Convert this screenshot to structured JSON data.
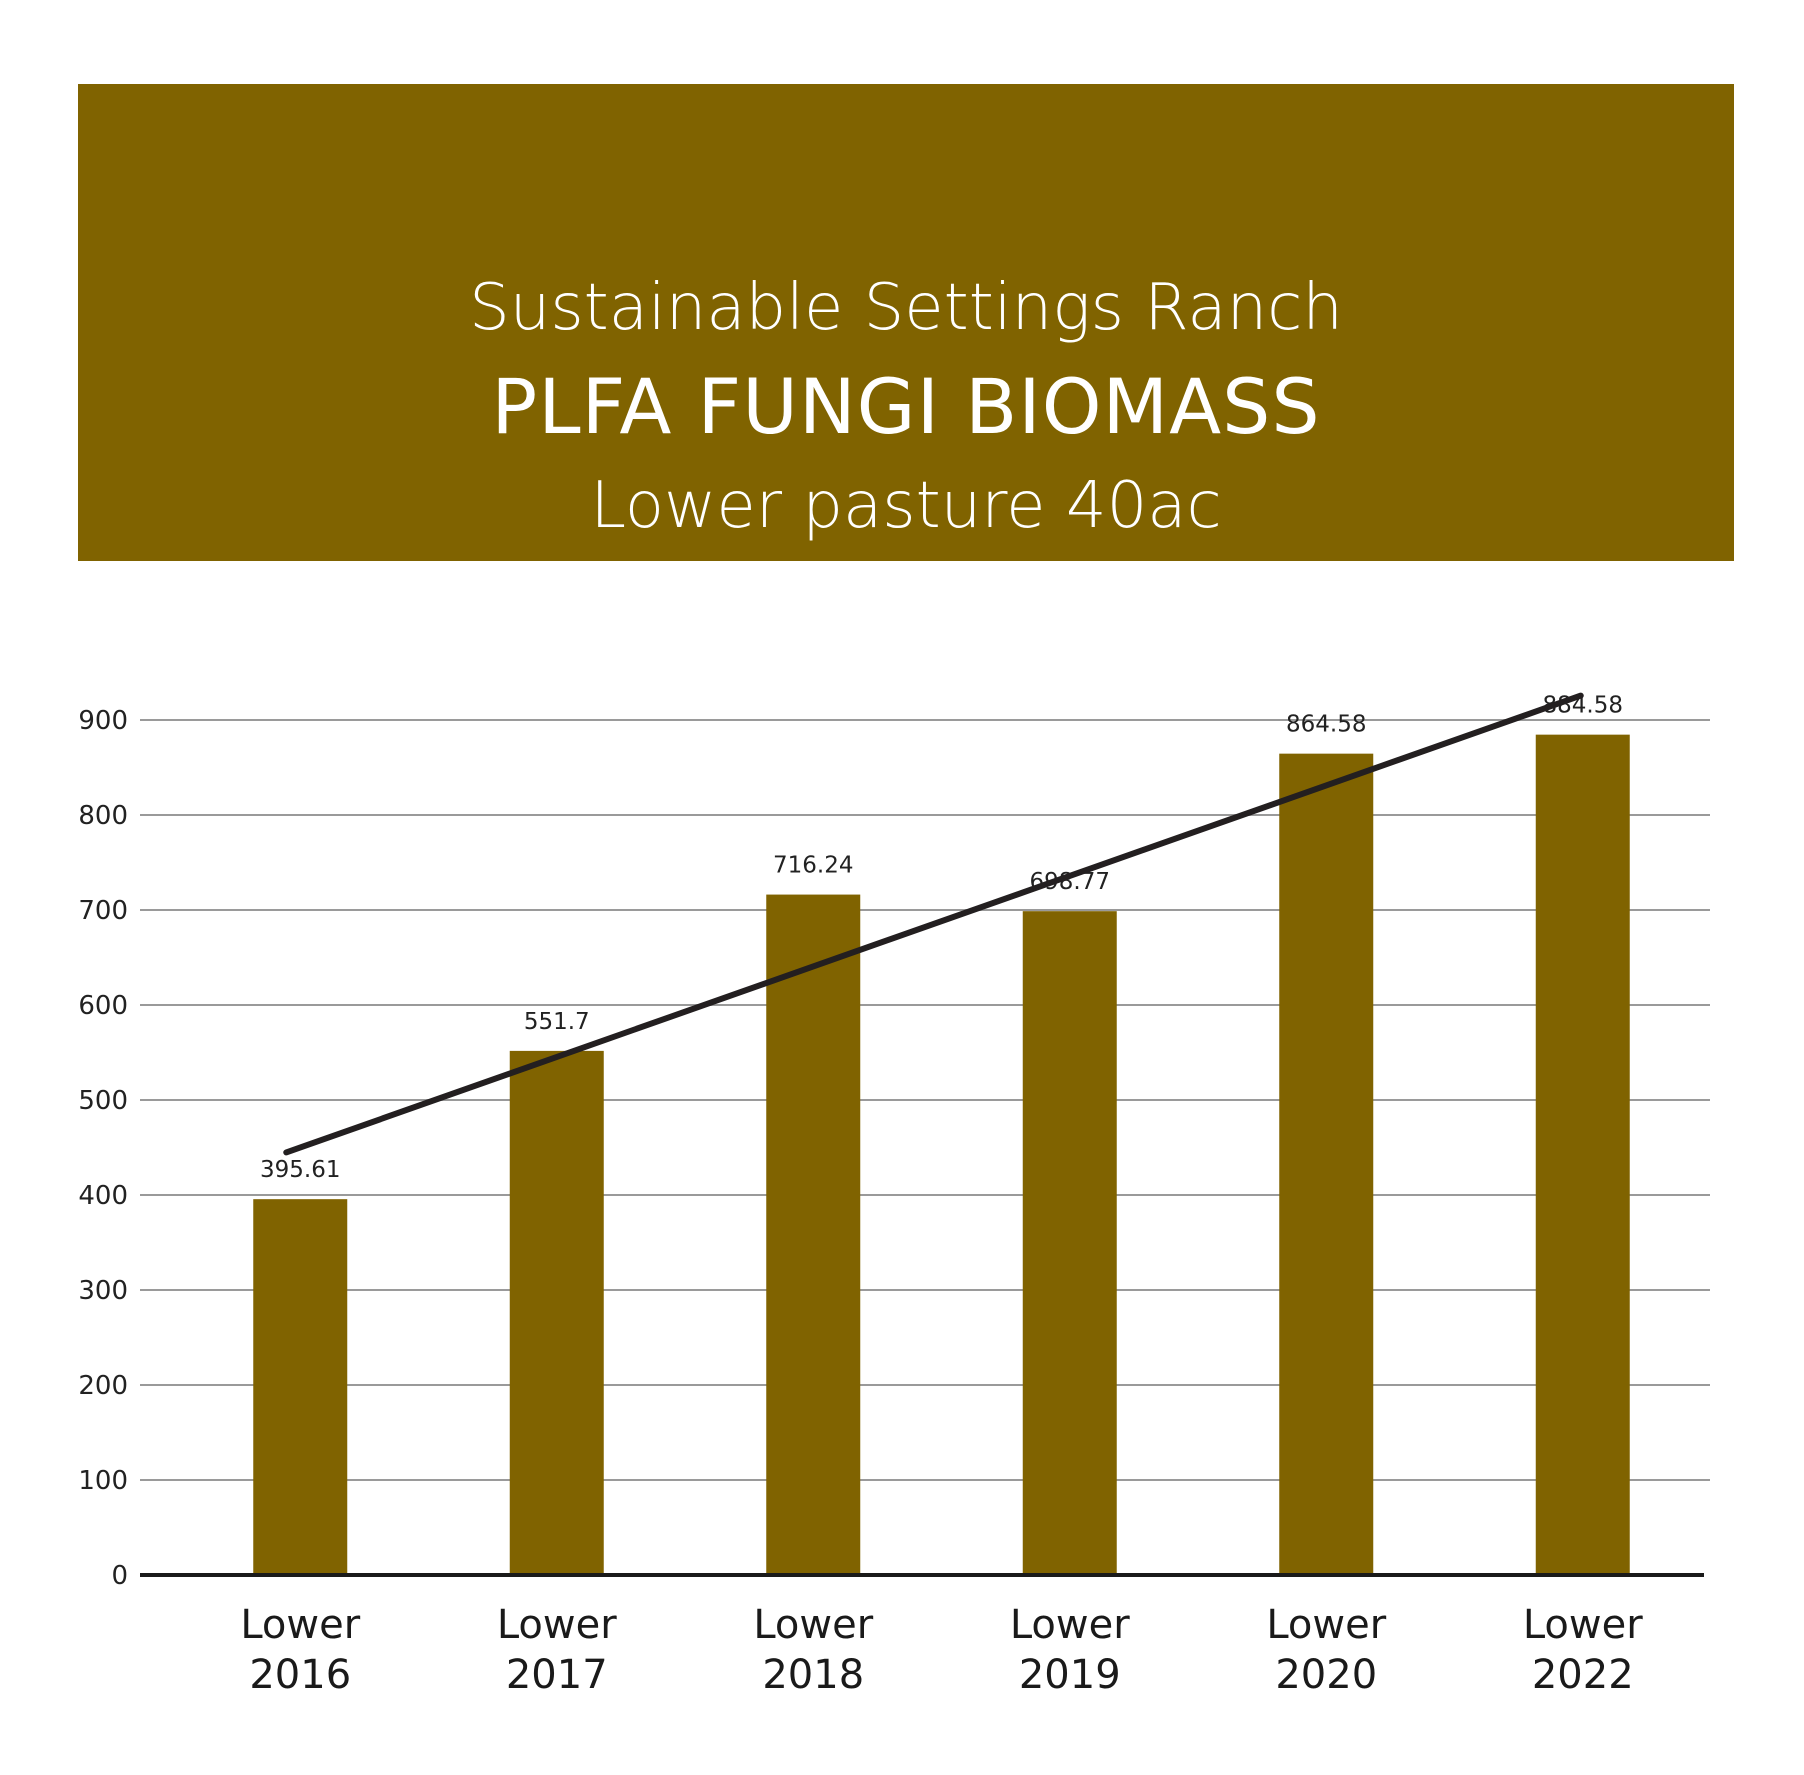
{
  "header": {
    "line1": "Sustainable Settings Ranch",
    "line2": "PLFA FUNGI BIOMASS",
    "line3": "Lower pasture 40ac"
  },
  "colors": {
    "header_bg": "#806300",
    "bar": "#806300",
    "trend": "#231f20",
    "grid": "#9a9a9a"
  },
  "chart_data": {
    "type": "bar",
    "title": "PLFA FUNGI BIOMASS",
    "categories": [
      [
        "Lower",
        "2016"
      ],
      [
        "Lower",
        "2017"
      ],
      [
        "Lower",
        "2018"
      ],
      [
        "Lower",
        "2019"
      ],
      [
        "Lower",
        "2020"
      ],
      [
        "Lower",
        "2022"
      ]
    ],
    "values": [
      395.61,
      551.7,
      716.24,
      698.77,
      864.58,
      884.58
    ],
    "data_labels": [
      "395.61",
      "551.7",
      "716.24",
      "698.77",
      "864.58",
      "884.58"
    ],
    "ylim": [
      0,
      900
    ],
    "yticks": [
      0,
      100,
      200,
      300,
      400,
      500,
      600,
      700,
      800,
      900
    ],
    "grid": true,
    "trendline": {
      "type": "linear"
    }
  }
}
